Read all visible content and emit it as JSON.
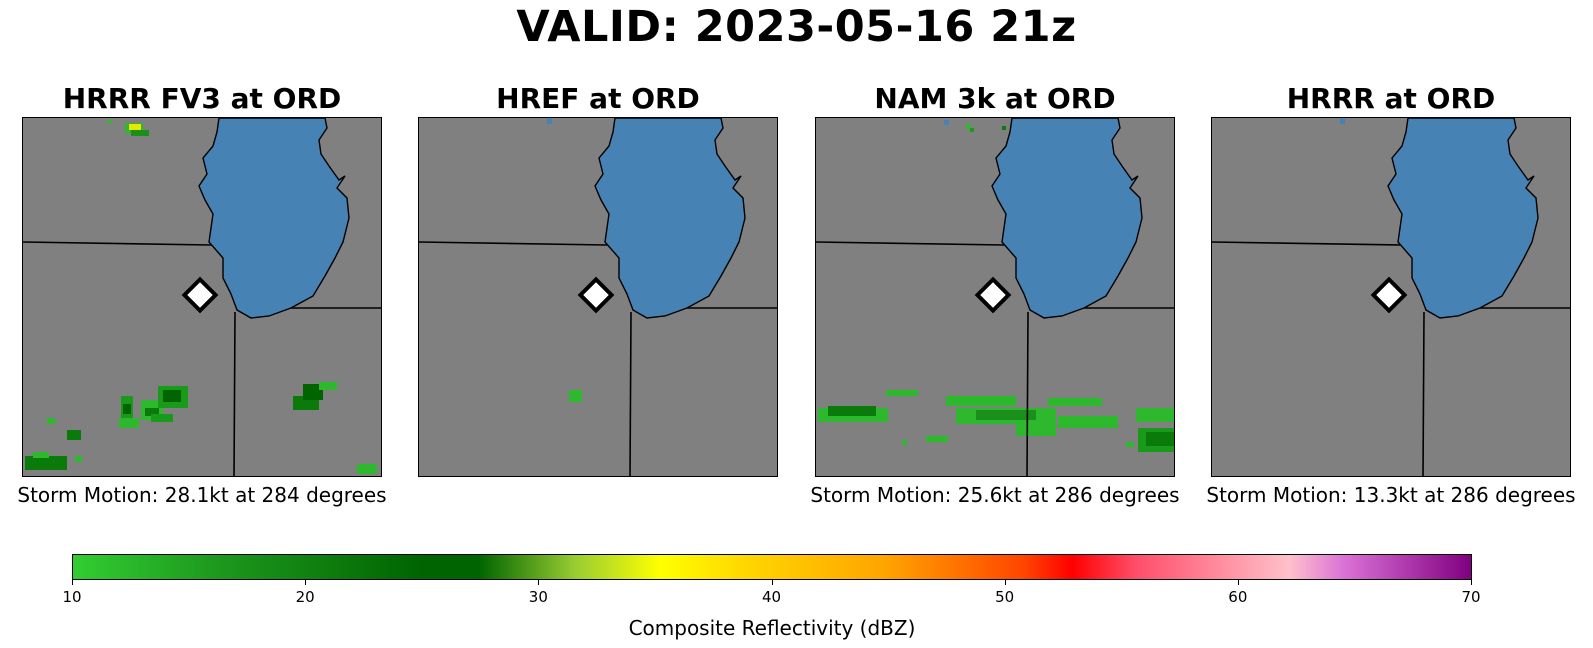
{
  "title": "VALID: 2023-05-16 21z",
  "panels": [
    {
      "title": "HRRR FV3 at ORD",
      "motion": "Storm Motion: 28.1kt at 284 degrees"
    },
    {
      "title": "HREF at ORD",
      "motion": ""
    },
    {
      "title": "NAM 3k at ORD",
      "motion": "Storm Motion: 25.6kt at 286 degrees"
    },
    {
      "title": "HRRR at ORD",
      "motion": "Storm Motion: 13.3kt at 286 degrees"
    }
  ],
  "colorbar": {
    "label": "Composite Reflectivity (dBZ)",
    "ticks": [
      "10",
      "20",
      "30",
      "40",
      "50",
      "60",
      "70"
    ],
    "range": [
      10,
      70
    ]
  },
  "colors": {
    "land": "#808080",
    "lake": "#4682b4",
    "border": "#000000",
    "marker": "#ffffff"
  }
}
